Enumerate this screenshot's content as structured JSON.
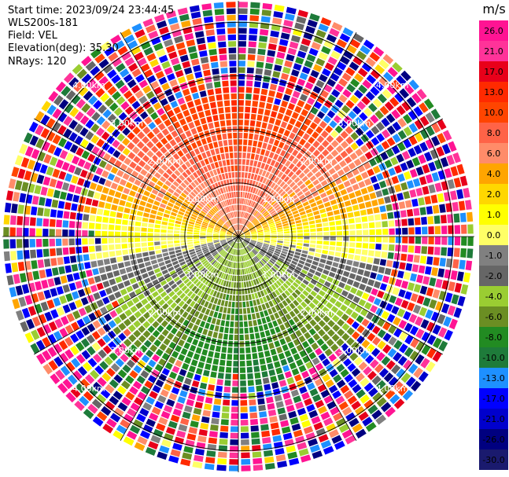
{
  "meta": {
    "start_time": "Start time: 2023/09/24 23:44:45",
    "instrument": "WLS200s-181",
    "field": "Field: VEL",
    "elevation": "Elevation(deg): 35.30",
    "nrays": "NRays: 120"
  },
  "chart_data": {
    "type": "heatmap",
    "projection": "polar-ppi",
    "n_rays": 120,
    "range_rings_km": [
      1.0,
      2.0,
      3.0,
      4.0
    ],
    "range_ring_labels": [
      "1.00km",
      "2.00km",
      "3.00km",
      "4.00km"
    ],
    "max_range_km": 4.4,
    "valid_range_km": 2.8,
    "azimuth_spokes_deg": [
      0,
      30,
      60,
      90,
      120,
      150,
      180,
      210,
      240,
      270,
      300,
      330
    ],
    "colorbar": {
      "unit": "m/s",
      "ticks": [
        26.0,
        21.0,
        17.0,
        13.0,
        10.0,
        8.0,
        6.0,
        4.0,
        2.0,
        1.0,
        0.0,
        -1.0,
        -2.0,
        -4.0,
        -6.0,
        -8.0,
        -10.0,
        -13.0,
        -17.0,
        -21.0,
        -26.0,
        -30.0
      ],
      "tick_labels": [
        "26.0",
        "21.0",
        "17.0",
        "13.0",
        "10.0",
        "8.0",
        "6.0",
        "4.0",
        "2.0",
        "1.0",
        "0.0",
        "-1.0",
        "-2.0",
        "-4.0",
        "-6.0",
        "-8.0",
        "-10.0",
        "-13.0",
        "-17.0",
        "-21.0",
        "-26.0",
        "-30.0"
      ],
      "colors": [
        "#ff1493",
        "#ff3399",
        "#e8001a",
        "#ff2a00",
        "#ff4500",
        "#ff6347",
        "#ff8c69",
        "#ffa500",
        "#ffd700",
        "#ffff00",
        "#ffff66",
        "#808080",
        "#666666",
        "#9acd32",
        "#6b8e23",
        "#228b22",
        "#1e7b3a",
        "#1e90ff",
        "#0000ff",
        "#0000cd",
        "#000080",
        "#1a1a6e"
      ]
    },
    "velocity_pattern": {
      "description_values": "north sector positive (yellow/orange 2 to 10 m/s), east/west near zero (grey), south sector negative (green -2 to -8 m/s), noise beyond valid range",
      "amplitude_ms": 8.0
    }
  }
}
